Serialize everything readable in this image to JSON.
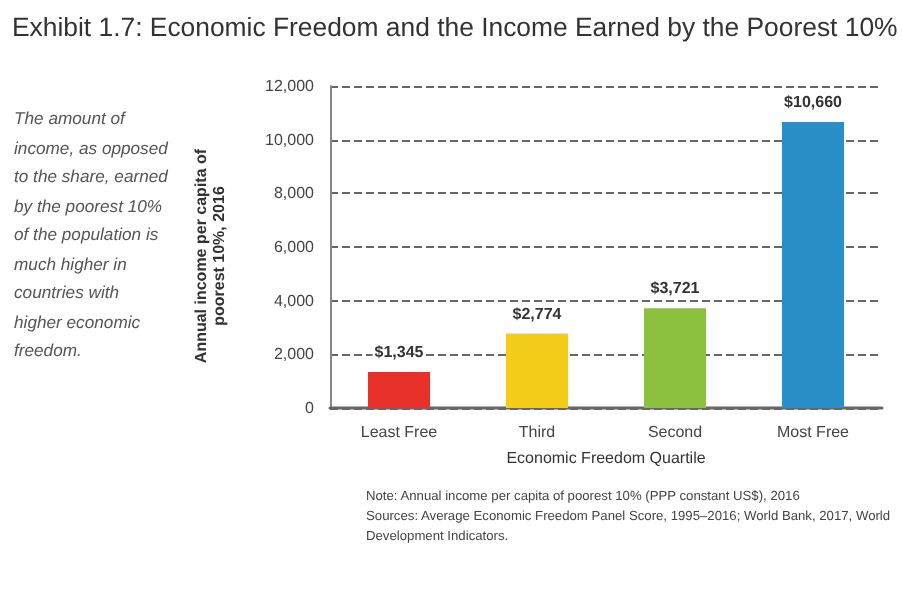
{
  "chart_data": {
    "type": "bar",
    "title": "Exhibit 1.7: Economic Freedom and the Income Earned by the Poorest 10%",
    "xlabel": "Economic Freedom Quartile",
    "ylabel": "Annual income per capita of poorest 10%, 2016",
    "categories": [
      "Least Free",
      "Third",
      "Second",
      "Most Free"
    ],
    "values": [
      1345,
      2774,
      3721,
      10660
    ],
    "colors": [
      "#e8312a",
      "#f5cc1a",
      "#8cc13f",
      "#2a8fc9"
    ],
    "value_labels": [
      "$1,345",
      "$2,774",
      "$3,721",
      "$10,660"
    ],
    "ylim": [
      0,
      12000
    ],
    "yticks": [
      0,
      {
        "value": 2000,
        "label": "2,000"
      },
      {
        "value": 4000,
        "label": "4,000"
      },
      {
        "value": 6000,
        "label": "6,000"
      },
      {
        "value": 8000,
        "label": "8,000"
      },
      {
        "value": 10000,
        "label": "10,000"
      },
      {
        "value": 12000,
        "label": "12,000"
      }
    ],
    "grid": "y",
    "annotations": [
      "The amount of income, as opposed to the share, earned by the poorest 10% of the population is much higher in countries with higher economic freedom.",
      "Note: Annual income per capita of poorest 10% (PPP constant US$), 2016",
      "Sources: Average Economic Freedom Panel Score, 1995–2016; World Bank, 2017, World Development Indicators."
    ]
  }
}
